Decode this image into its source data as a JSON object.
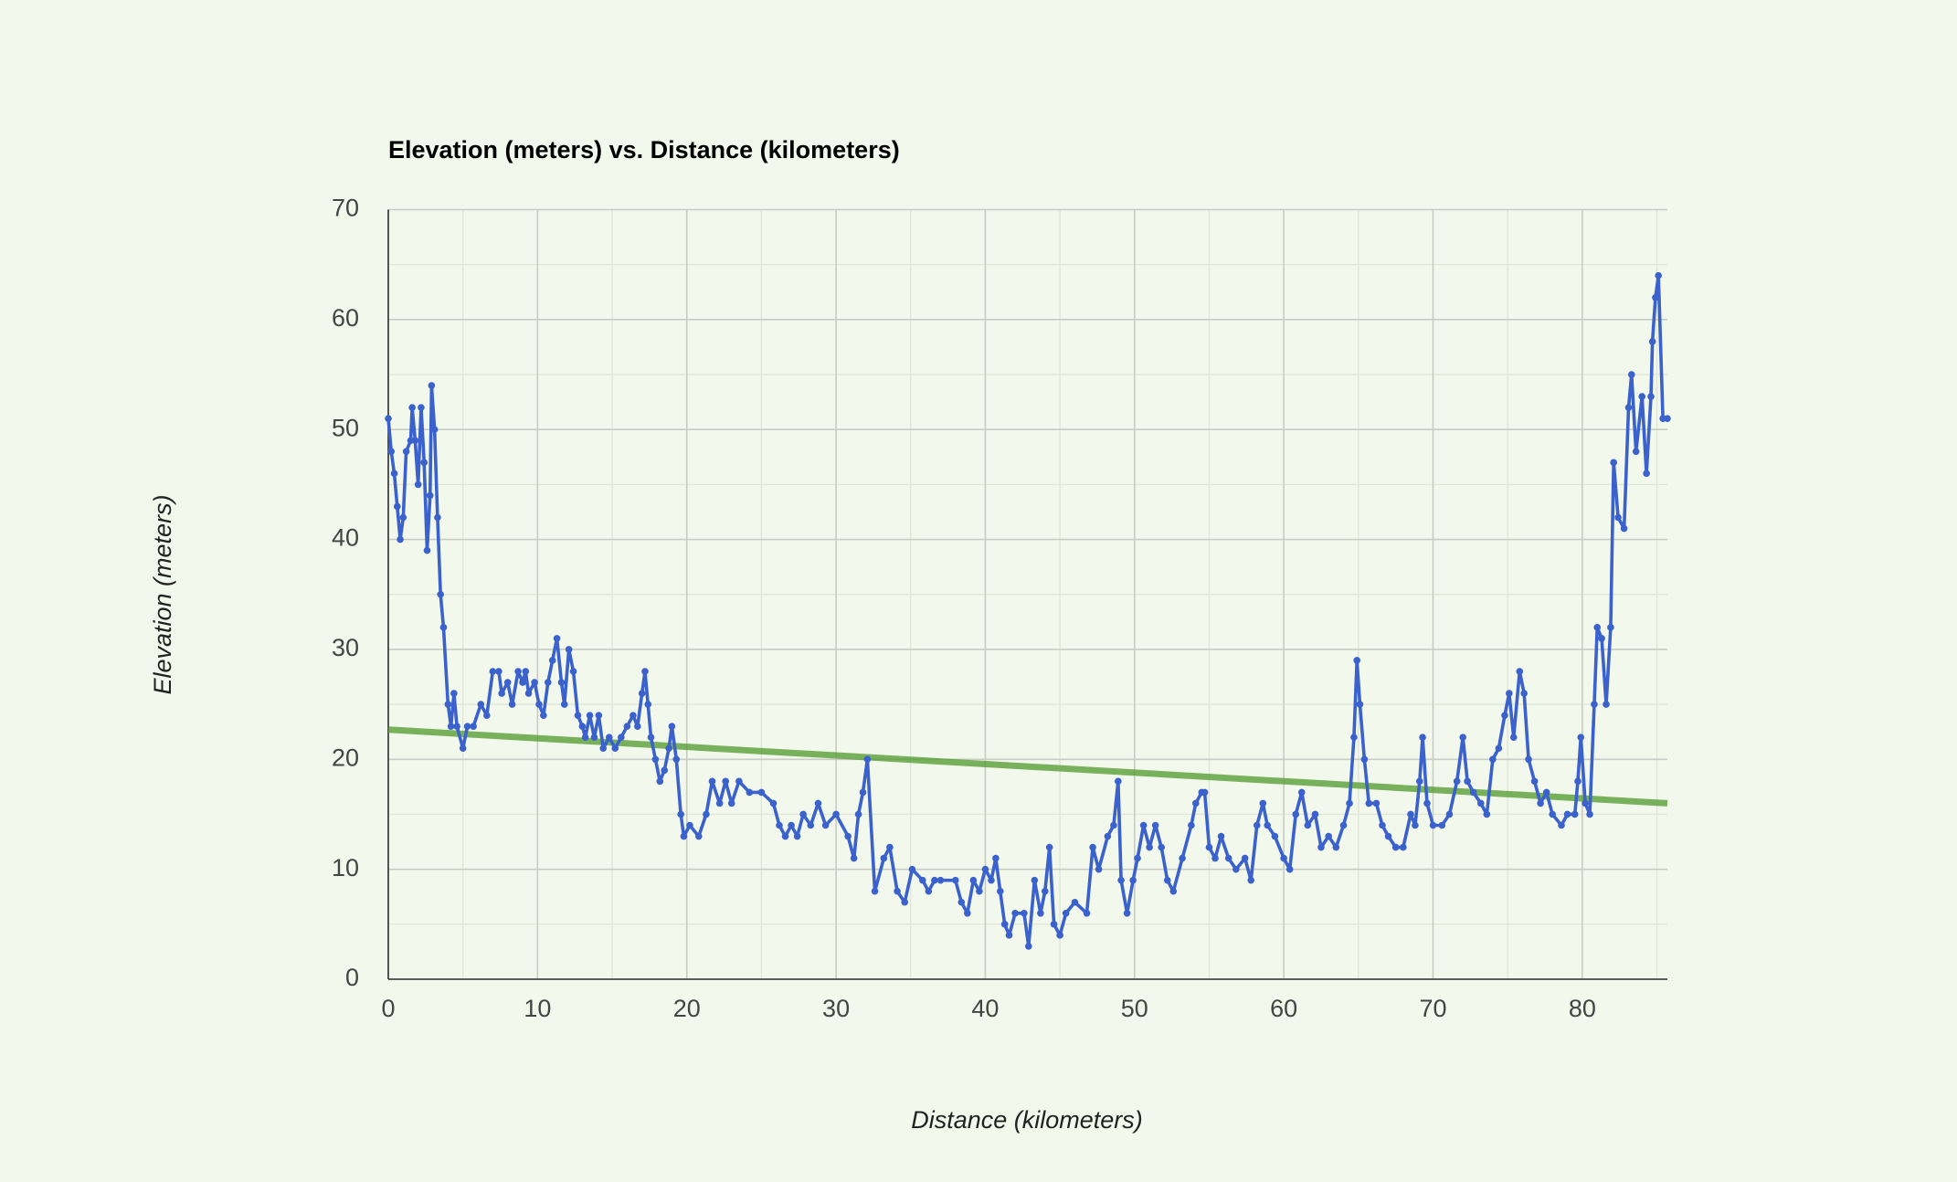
{
  "chart_data": {
    "type": "line",
    "title": "Elevation (meters) vs. Distance (kilometers)",
    "x_label": "Distance (kilometers)",
    "y_label": "Elevation (meters)",
    "color": "#3b62cc",
    "x": [
      0,
      0.2,
      0.4,
      0.6,
      0.8,
      1,
      1.2,
      1.5,
      1.6,
      1.8,
      2,
      2.2,
      2.4,
      2.6,
      2.8,
      2.9,
      3.1,
      3.3,
      3.5,
      3.7,
      4,
      4.2,
      4.4,
      4.6,
      5,
      5.3,
      5.7,
      6.2,
      6.6,
      7,
      7.4,
      7.6,
      8,
      8.3,
      8.7,
      9,
      9.2,
      9.4,
      9.8,
      10.1,
      10.4,
      10.7,
      11,
      11.3,
      11.6,
      11.8,
      12.1,
      12.4,
      12.7,
      13,
      13.2,
      13.5,
      13.8,
      14.1,
      14.4,
      14.8,
      15.2,
      15.6,
      16,
      16.4,
      16.7,
      17,
      17.2,
      17.4,
      17.6,
      17.9,
      18.2,
      18.5,
      18.8,
      19,
      19.3,
      19.6,
      19.8,
      20.2,
      20.8,
      21.3,
      21.7,
      22.2,
      22.6,
      23,
      23.5,
      24.2,
      25,
      25.8,
      26.2,
      26.6,
      27,
      27.4,
      27.8,
      28.3,
      28.8,
      29.3,
      30,
      30.8,
      31.2,
      31.5,
      31.8,
      32.1,
      32.6,
      33.2,
      33.6,
      34.1,
      34.6,
      35.1,
      35.8,
      36.2,
      36.6,
      37,
      38,
      38.4,
      38.8,
      39.2,
      39.6,
      40,
      40.4,
      40.7,
      41,
      41.3,
      41.6,
      42,
      42.6,
      42.9,
      43.3,
      43.7,
      44,
      44.3,
      44.6,
      45,
      45.4,
      46,
      46.8,
      47.2,
      47.6,
      48.2,
      48.6,
      48.9,
      49.1,
      49.5,
      49.9,
      50.2,
      50.6,
      51,
      51.4,
      51.8,
      52.2,
      52.6,
      53.2,
      53.8,
      54.1,
      54.5,
      54.7,
      55,
      55.4,
      55.8,
      56.3,
      56.8,
      57.4,
      57.8,
      58.2,
      58.6,
      58.9,
      59.4,
      60,
      60.4,
      60.8,
      61.2,
      61.6,
      62.1,
      62.5,
      63,
      63.5,
      64,
      64.4,
      64.7,
      64.9,
      65.1,
      65.4,
      65.7,
      66.2,
      66.6,
      67,
      67.5,
      68,
      68.5,
      68.8,
      69.1,
      69.3,
      69.6,
      70,
      70.6,
      71.1,
      71.6,
      72,
      72.3,
      72.7,
      73.2,
      73.6,
      74,
      74.4,
      74.8,
      75.1,
      75.4,
      75.8,
      76.1,
      76.4,
      76.8,
      77.2,
      77.6,
      78,
      78.6,
      79,
      79.5,
      79.7,
      79.9,
      80.2,
      80.5,
      80.8,
      81,
      81.3,
      81.6,
      81.9,
      82.1,
      82.4,
      82.8,
      83.1,
      83.3,
      83.6,
      84,
      84.3,
      84.6,
      84.7,
      84.9,
      85.1,
      85.4,
      85.7
    ],
    "values": [
      51,
      48,
      46,
      43,
      40,
      42,
      48,
      49,
      52,
      49,
      45,
      52,
      47,
      39,
      44,
      54,
      50,
      42,
      35,
      32,
      25,
      23,
      26,
      23,
      21,
      23,
      23,
      25,
      24,
      28,
      28,
      26,
      27,
      25,
      28,
      27,
      28,
      26,
      27,
      25,
      24,
      27,
      29,
      31,
      27,
      25,
      30,
      28,
      24,
      23,
      22,
      24,
      22,
      24,
      21,
      22,
      21,
      22,
      23,
      24,
      23,
      26,
      28,
      25,
      22,
      20,
      18,
      19,
      21,
      23,
      20,
      15,
      13,
      14,
      13,
      15,
      18,
      16,
      18,
      16,
      18,
      17,
      17,
      16,
      14,
      13,
      14,
      13,
      15,
      14,
      16,
      14,
      15,
      13,
      11,
      15,
      17,
      20,
      8,
      11,
      12,
      8,
      7,
      10,
      9,
      8,
      9,
      9,
      9,
      7,
      6,
      9,
      8,
      10,
      9,
      11,
      8,
      5,
      4,
      6,
      6,
      3,
      9,
      6,
      8,
      12,
      5,
      4,
      6,
      7,
      6,
      12,
      10,
      13,
      14,
      18,
      9,
      6,
      9,
      11,
      14,
      12,
      14,
      12,
      9,
      8,
      11,
      14,
      16,
      17,
      17,
      12,
      11,
      13,
      11,
      10,
      11,
      9,
      14,
      16,
      14,
      13,
      11,
      10,
      15,
      17,
      14,
      15,
      12,
      13,
      12,
      14,
      16,
      22,
      29,
      25,
      20,
      16,
      16,
      14,
      13,
      12,
      12,
      15,
      14,
      18,
      22,
      16,
      14,
      14,
      15,
      18,
      22,
      18,
      17,
      16,
      15,
      20,
      21,
      24,
      26,
      22,
      28,
      26,
      20,
      18,
      16,
      17,
      15,
      14,
      15,
      15,
      18,
      22,
      16,
      15,
      25,
      32,
      31,
      25,
      32,
      47,
      42,
      41,
      52,
      55,
      48,
      53,
      46,
      53,
      58,
      62,
      64,
      51,
      51
    ],
    "trendline": {
      "color": "#4f9a2c",
      "x": [
        0,
        85.7
      ],
      "values": [
        22.7,
        16
      ]
    },
    "xlim": [
      0,
      85.7
    ],
    "xticks": [
      0,
      10,
      20,
      30,
      40,
      50,
      60,
      70,
      80
    ],
    "ylim": [
      0,
      70
    ],
    "yticks": [
      0,
      10,
      20,
      30,
      40,
      50,
      60,
      70
    ],
    "x_minor_grid": [
      5,
      15,
      25,
      35,
      45,
      55,
      65,
      75,
      85
    ],
    "y_minor_grid": [
      5,
      15,
      25,
      35,
      45,
      55,
      65
    ],
    "grid": true
  }
}
